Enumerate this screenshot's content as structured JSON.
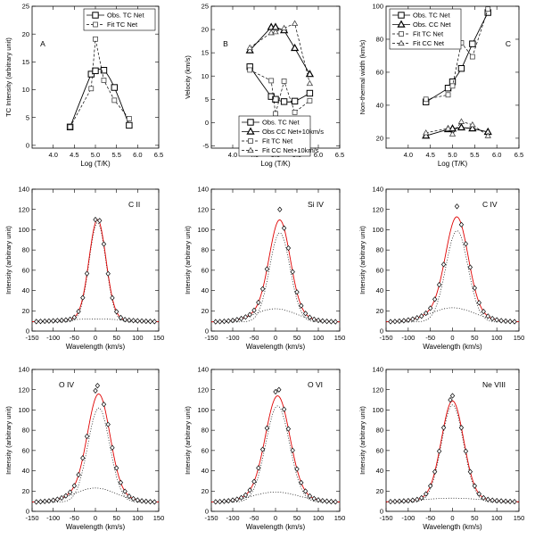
{
  "figure": "Multi-panel solar spectral fit figure",
  "top_row_xlabel": "Log (T/K)",
  "bottom_xlabel": "Wavelength (km/s)",
  "chart_data": [
    {
      "id": "A",
      "type": "line",
      "panel_label": "A",
      "xlabel": "Log (T/K)",
      "ylabel": "TC Intensity (arbitrary unit)",
      "xlim": [
        3.5,
        6.5
      ],
      "ylim": [
        -0.5,
        25
      ],
      "xticks": [
        4.0,
        4.5,
        5.0,
        5.5,
        6.0,
        6.5
      ],
      "xtick_labels": [
        "4.0",
        "4.5",
        "5.0",
        "5.5",
        "6.0",
        "6.5"
      ],
      "yticks": [
        0,
        5,
        10,
        15,
        20,
        25
      ],
      "legend": "top-right",
      "series": [
        {
          "name": "Obs. TC Net",
          "style": "solid",
          "marker": "square",
          "smooth": true,
          "x": [
            4.4,
            4.9,
            5.0,
            5.2,
            5.45,
            5.8
          ],
          "y": [
            3.3,
            12.8,
            13.4,
            13.5,
            10.4,
            3.6
          ]
        },
        {
          "name": "Fit TC Net",
          "style": "dashed",
          "marker": "square-small",
          "x": [
            4.4,
            4.9,
            5.0,
            5.2,
            5.45,
            5.8
          ],
          "y": [
            3.3,
            10.2,
            19.1,
            11.7,
            8.1,
            4.8
          ]
        }
      ]
    },
    {
      "id": "B",
      "type": "line",
      "panel_label": "B",
      "xlabel": "Log (T/K)",
      "ylabel": "Velocity (km/s)",
      "xlim": [
        3.5,
        6.5
      ],
      "ylim": [
        -5.5,
        25
      ],
      "xticks": [
        4.0,
        4.5,
        5.0,
        5.5,
        6.0,
        6.5
      ],
      "xtick_labels": [
        "4.0",
        "4.5",
        "5.0",
        "5.5",
        "6.0",
        "6.5"
      ],
      "yticks": [
        -5,
        0,
        5,
        10,
        15,
        20,
        25
      ],
      "legend": "bottom-right",
      "series": [
        {
          "name": "Obs. TC Net",
          "style": "solid",
          "marker": "square",
          "smooth": true,
          "x": [
            4.4,
            4.9,
            5.0,
            5.2,
            5.45,
            5.8
          ],
          "y": [
            12.0,
            5.6,
            5.0,
            4.5,
            4.6,
            6.3
          ]
        },
        {
          "name": "Obs CC Net+10km/s",
          "style": "solid",
          "marker": "triangle",
          "smooth": false,
          "x": [
            4.4,
            4.9,
            5.0,
            5.2,
            5.45,
            5.8
          ],
          "y": [
            15.5,
            20.5,
            20.5,
            19.8,
            16.0,
            10.4
          ]
        },
        {
          "name": "Fit TC Net",
          "style": "dashed",
          "marker": "square-small",
          "x": [
            4.4,
            4.9,
            5.0,
            5.2,
            5.45,
            5.8
          ],
          "y": [
            11.3,
            9.0,
            1.9,
            8.9,
            2.2,
            4.7
          ]
        },
        {
          "name": "Fit CC Net+10km/s",
          "style": "dashed",
          "marker": "triangle-small",
          "x": [
            4.4,
            4.9,
            5.0,
            5.2,
            5.45,
            5.8
          ],
          "y": [
            16.1,
            19.3,
            19.5,
            20.3,
            21.3,
            8.4
          ]
        }
      ]
    },
    {
      "id": "C",
      "type": "line",
      "panel_label": "C",
      "xlabel": "Log (T/K)",
      "ylabel": "Non-thermal width (km/s)",
      "xlim": [
        3.5,
        6.5
      ],
      "ylim": [
        14,
        100
      ],
      "xticks": [
        4.0,
        4.5,
        5.0,
        5.5,
        6.0,
        6.5
      ],
      "xtick_labels": [
        "4.0",
        "4.5",
        "5.0",
        "5.5",
        "6.0",
        "6.5"
      ],
      "yticks": [
        20,
        40,
        60,
        80,
        100
      ],
      "legend": "top-left",
      "series": [
        {
          "name": "Obs. TC Net",
          "style": "solid",
          "marker": "square",
          "smooth": true,
          "x": [
            4.4,
            4.9,
            5.0,
            5.2,
            5.45,
            5.8
          ],
          "y": [
            42.0,
            50.4,
            54.2,
            62.3,
            77.2,
            96.2
          ]
        },
        {
          "name": "Obs. CC Net",
          "style": "solid",
          "marker": "triangle",
          "smooth": false,
          "x": [
            4.4,
            4.9,
            5.0,
            5.2,
            5.45,
            5.8
          ],
          "y": [
            21.5,
            25.4,
            25.8,
            26.5,
            25.9,
            23.8
          ]
        },
        {
          "name": "Fit TC Net",
          "style": "dashed",
          "marker": "square-small",
          "x": [
            4.4,
            4.9,
            5.0,
            5.2,
            5.45,
            5.8
          ],
          "y": [
            43.6,
            46.3,
            51.7,
            77.8,
            69.4,
            98.3
          ]
        },
        {
          "name": "Fit CC Net",
          "style": "dashed",
          "marker": "triangle-small",
          "x": [
            4.4,
            4.9,
            5.0,
            5.2,
            5.45,
            5.8
          ],
          "y": [
            23.3,
            25.9,
            22.5,
            30.1,
            28.2,
            21.5
          ]
        }
      ]
    },
    {
      "id": "CII",
      "type": "line",
      "line_label": "C II",
      "label_pos": "right",
      "xlabel": "Wavelength (km/s)",
      "ylabel": "Intensity (arbitrary unit)",
      "xlim": [
        -150,
        150
      ],
      "ylim": [
        0,
        140
      ],
      "xticks": [
        -150,
        -100,
        -50,
        0,
        50,
        100,
        150
      ],
      "yticks": [
        0,
        20,
        40,
        60,
        80,
        100,
        120,
        140
      ],
      "background": 9,
      "narrow": {
        "amp": 98,
        "center": 5,
        "sigma": 20
      },
      "broad": {
        "amp": 3,
        "center": 0,
        "sigma": 70
      },
      "peak_obs": [
        {
          "x": 0,
          "y": 110
        },
        {
          "x": 10,
          "y": 109
        }
      ]
    },
    {
      "id": "SiIV",
      "type": "line",
      "line_label": "Si IV",
      "label_pos": "right",
      "xlabel": "Wavelength (km/s)",
      "ylabel": "Intensity (arbitrary unit)",
      "xlim": [
        -150,
        150
      ],
      "ylim": [
        0,
        140
      ],
      "xticks": [
        -150,
        -100,
        -50,
        0,
        50,
        100,
        150
      ],
      "yticks": [
        0,
        20,
        40,
        60,
        80,
        100,
        120,
        140
      ],
      "background": 9,
      "narrow": {
        "amp": 88,
        "center": 10,
        "sigma": 24
      },
      "broad": {
        "amp": 13,
        "center": 0,
        "sigma": 48
      },
      "peak_obs": [
        {
          "x": 10,
          "y": 120
        }
      ]
    },
    {
      "id": "CIV",
      "type": "line",
      "line_label": "C IV",
      "label_pos": "right",
      "xlabel": "Wavelength (km/s)",
      "ylabel": "Intensity (arbitrary unit)",
      "xlim": [
        -150,
        150
      ],
      "ylim": [
        0,
        140
      ],
      "xticks": [
        -150,
        -100,
        -50,
        0,
        50,
        100,
        150
      ],
      "yticks": [
        0,
        20,
        40,
        60,
        80,
        100,
        120,
        140
      ],
      "background": 9,
      "narrow": {
        "amp": 90,
        "center": 10,
        "sigma": 25
      },
      "broad": {
        "amp": 14,
        "center": 0,
        "sigma": 50
      },
      "peak_obs": [
        {
          "x": 10,
          "y": 123
        }
      ]
    },
    {
      "id": "OIV",
      "type": "line",
      "line_label": "O IV",
      "label_pos": "left",
      "xlabel": "Wavelength (km/s)",
      "ylabel": "Intensity (arbitrary unit)",
      "xlim": [
        -150,
        150
      ],
      "ylim": [
        0,
        140
      ],
      "xticks": [
        -150,
        -100,
        -50,
        0,
        50,
        100,
        150
      ],
      "yticks": [
        0,
        20,
        40,
        60,
        80,
        100,
        120,
        140
      ],
      "background": 9,
      "narrow": {
        "amp": 93,
        "center": 8,
        "sigma": 26
      },
      "broad": {
        "amp": 14,
        "center": 0,
        "sigma": 50
      },
      "peak_obs": [
        {
          "x": 5,
          "y": 124
        },
        {
          "x": 0,
          "y": 119
        }
      ]
    },
    {
      "id": "OVI",
      "type": "line",
      "line_label": "O VI",
      "label_pos": "right",
      "xlabel": "Wavelength (km/s)",
      "ylabel": "Intensity (arbitrary unit)",
      "xlim": [
        -150,
        150
      ],
      "ylim": [
        0,
        140
      ],
      "xticks": [
        -150,
        -100,
        -50,
        0,
        50,
        100,
        150
      ],
      "yticks": [
        0,
        20,
        40,
        60,
        80,
        100,
        120,
        140
      ],
      "background": 9,
      "narrow": {
        "amp": 95,
        "center": 5,
        "sigma": 28
      },
      "broad": {
        "amp": 10,
        "center": 0,
        "sigma": 55
      },
      "peak_obs": [
        {
          "x": 0,
          "y": 118
        },
        {
          "x": 8,
          "y": 120
        }
      ]
    },
    {
      "id": "NeVIII",
      "type": "line",
      "line_label": "Ne VIII",
      "label_pos": "right",
      "xlabel": "Wavelength (km/s)",
      "ylabel": "Intensity (arbitrary unit)",
      "xlim": [
        -150,
        150
      ],
      "ylim": [
        0,
        140
      ],
      "xticks": [
        -150,
        -100,
        -50,
        0,
        50,
        100,
        150
      ],
      "yticks": [
        0,
        20,
        40,
        60,
        80,
        100,
        120,
        140
      ],
      "background": 9,
      "narrow": {
        "amp": 96,
        "center": 0,
        "sigma": 25
      },
      "broad": {
        "amp": 4,
        "center": 0,
        "sigma": 70
      },
      "peak_obs": [
        {
          "x": 0,
          "y": 114
        },
        {
          "x": -5,
          "y": 110
        }
      ]
    }
  ]
}
